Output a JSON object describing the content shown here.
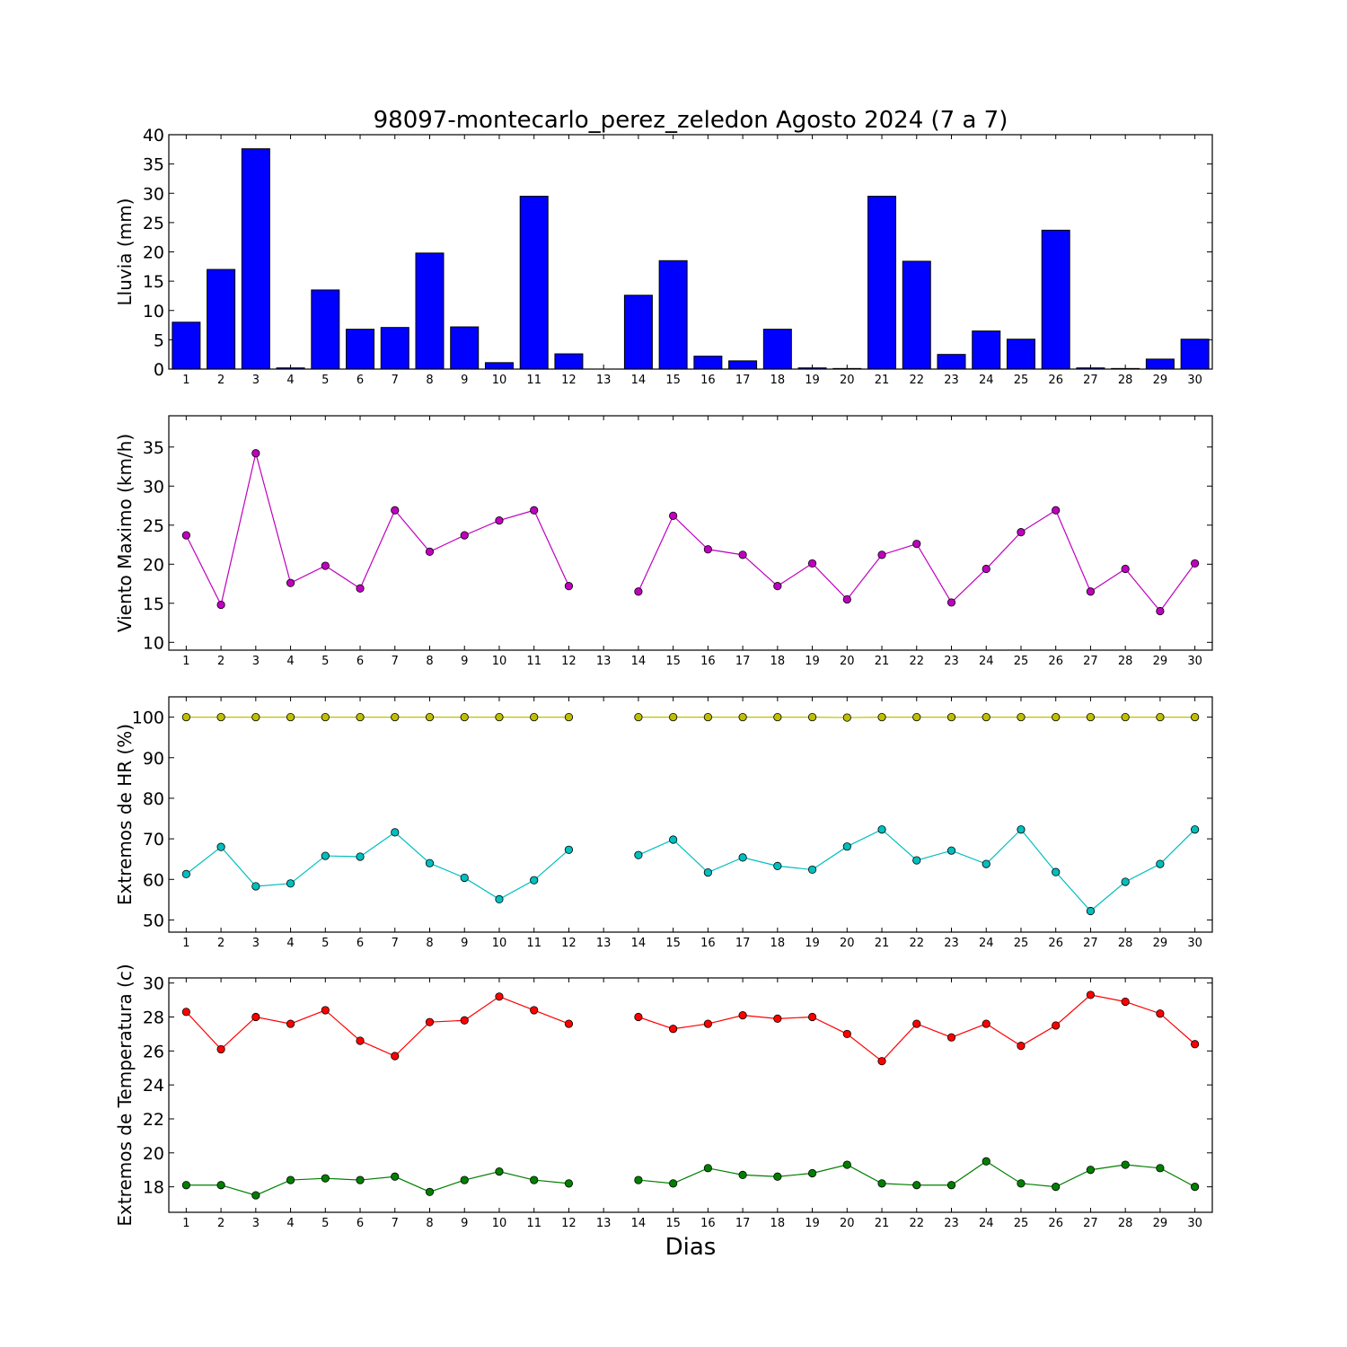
{
  "title": "98097-montecarlo_perez_zeledon Agosto 2024  (7 a 7)",
  "xlabel": "Dias",
  "chart_data": [
    {
      "type": "bar",
      "ylabel": "Lluvia (mm)",
      "ylim": [
        0,
        40
      ],
      "yticks": [
        0,
        5,
        10,
        15,
        20,
        25,
        30,
        35,
        40
      ],
      "xlim": [
        0.5,
        30.5
      ],
      "categories": [
        1,
        2,
        3,
        4,
        5,
        6,
        7,
        8,
        9,
        10,
        11,
        12,
        13,
        14,
        15,
        16,
        17,
        18,
        19,
        20,
        21,
        22,
        23,
        24,
        25,
        26,
        27,
        28,
        29,
        30
      ],
      "xtick_labels": [
        "1",
        "2",
        "3",
        "4",
        "5",
        "6",
        "7",
        "8",
        "9",
        "10",
        "11",
        "12",
        "13",
        "14",
        "15",
        "16",
        "17",
        "18",
        "19",
        "20",
        "21",
        "22",
        "23",
        "24",
        "25",
        "26",
        "27",
        "28",
        "29",
        "30"
      ],
      "series": [
        {
          "color": "#0000ff",
          "values": [
            8.0,
            17.0,
            37.6,
            0.2,
            13.5,
            6.8,
            7.1,
            19.8,
            7.2,
            1.1,
            29.5,
            2.6,
            0,
            12.6,
            18.5,
            2.2,
            1.4,
            6.8,
            0.2,
            0.1,
            29.5,
            18.4,
            2.5,
            6.5,
            5.1,
            23.7,
            0.2,
            0.1,
            1.7,
            5.1
          ]
        }
      ]
    },
    {
      "type": "line",
      "ylabel": "Viento Maximo (km/h)",
      "ylim": [
        9,
        39
      ],
      "yticks": [
        10,
        15,
        20,
        25,
        30,
        35
      ],
      "xlim": [
        0.5,
        30.5
      ],
      "x": [
        1,
        2,
        3,
        4,
        5,
        6,
        7,
        8,
        9,
        10,
        11,
        12,
        13,
        14,
        15,
        16,
        17,
        18,
        19,
        20,
        21,
        22,
        23,
        24,
        25,
        26,
        27,
        28,
        29,
        30
      ],
      "xtick_labels": [
        "1",
        "2",
        "3",
        "4",
        "5",
        "6",
        "7",
        "8",
        "9",
        "10",
        "11",
        "12",
        "13",
        "14",
        "15",
        "16",
        "17",
        "18",
        "19",
        "20",
        "21",
        "22",
        "23",
        "24",
        "25",
        "26",
        "27",
        "28",
        "29",
        "30"
      ],
      "series": [
        {
          "color": "#bf00bf",
          "values": [
            23.7,
            14.8,
            34.2,
            17.6,
            19.8,
            16.9,
            26.9,
            21.6,
            23.7,
            25.6,
            26.9,
            17.2,
            null,
            16.5,
            26.2,
            21.9,
            21.2,
            17.2,
            20.1,
            15.5,
            21.2,
            22.6,
            15.1,
            19.4,
            24.1,
            26.9,
            16.5,
            19.4,
            14.0,
            20.1
          ]
        }
      ]
    },
    {
      "type": "line",
      "ylabel": "Extremos de HR (%)",
      "ylim": [
        47,
        105
      ],
      "yticks": [
        50,
        60,
        70,
        80,
        90,
        100
      ],
      "xlim": [
        0.5,
        30.5
      ],
      "x": [
        1,
        2,
        3,
        4,
        5,
        6,
        7,
        8,
        9,
        10,
        11,
        12,
        13,
        14,
        15,
        16,
        17,
        18,
        19,
        20,
        21,
        22,
        23,
        24,
        25,
        26,
        27,
        28,
        29,
        30
      ],
      "xtick_labels": [
        "1",
        "2",
        "3",
        "4",
        "5",
        "6",
        "7",
        "8",
        "9",
        "10",
        "11",
        "12",
        "13",
        "14",
        "15",
        "16",
        "17",
        "18",
        "19",
        "20",
        "21",
        "22",
        "23",
        "24",
        "25",
        "26",
        "27",
        "28",
        "29",
        "30"
      ],
      "series": [
        {
          "color": "#bfbf00",
          "values": [
            100,
            100,
            100,
            100,
            100,
            100,
            100,
            100,
            100,
            100,
            100,
            100,
            null,
            100,
            100,
            100,
            100,
            100,
            100,
            99.9,
            100,
            100,
            100,
            100,
            100,
            100,
            100,
            100,
            100,
            100
          ]
        },
        {
          "color": "#00bfbf",
          "values": [
            61.3,
            68.0,
            58.3,
            59.0,
            65.8,
            65.6,
            71.6,
            64.0,
            60.4,
            55.1,
            59.8,
            67.3,
            null,
            66.0,
            69.8,
            61.7,
            65.4,
            63.3,
            62.4,
            68.1,
            72.3,
            64.7,
            67.1,
            63.8,
            72.3,
            61.8,
            52.2,
            59.4,
            63.8,
            72.3
          ]
        }
      ]
    },
    {
      "type": "line",
      "ylabel": "Extremos de Temperatura (c)",
      "ylim": [
        16.5,
        30.3
      ],
      "yticks": [
        18,
        20,
        22,
        24,
        26,
        28,
        30
      ],
      "xlim": [
        0.5,
        30.5
      ],
      "x": [
        1,
        2,
        3,
        4,
        5,
        6,
        7,
        8,
        9,
        10,
        11,
        12,
        13,
        14,
        15,
        16,
        17,
        18,
        19,
        20,
        21,
        22,
        23,
        24,
        25,
        26,
        27,
        28,
        29,
        30
      ],
      "xtick_labels": [
        "1",
        "2",
        "3",
        "4",
        "5",
        "6",
        "7",
        "8",
        "9",
        "10",
        "11",
        "12",
        "13",
        "14",
        "15",
        "16",
        "17",
        "18",
        "19",
        "20",
        "21",
        "22",
        "23",
        "24",
        "25",
        "26",
        "27",
        "28",
        "29",
        "30"
      ],
      "series": [
        {
          "color": "#ff0000",
          "values": [
            28.3,
            26.1,
            28.0,
            27.6,
            28.4,
            26.6,
            25.7,
            27.7,
            27.8,
            29.2,
            28.4,
            27.6,
            null,
            28.0,
            27.3,
            27.6,
            28.1,
            27.9,
            28.0,
            27.0,
            25.4,
            27.6,
            26.8,
            27.6,
            26.3,
            27.5,
            29.3,
            28.9,
            28.2,
            26.4
          ]
        },
        {
          "color": "#007f00",
          "values": [
            18.1,
            18.1,
            17.5,
            18.4,
            18.5,
            18.4,
            18.6,
            17.7,
            18.4,
            18.9,
            18.4,
            18.2,
            null,
            18.4,
            18.2,
            19.1,
            18.7,
            18.6,
            18.8,
            19.3,
            18.2,
            18.1,
            18.1,
            19.5,
            18.2,
            18.0,
            19.0,
            19.3,
            19.1,
            18.0
          ]
        }
      ]
    }
  ]
}
